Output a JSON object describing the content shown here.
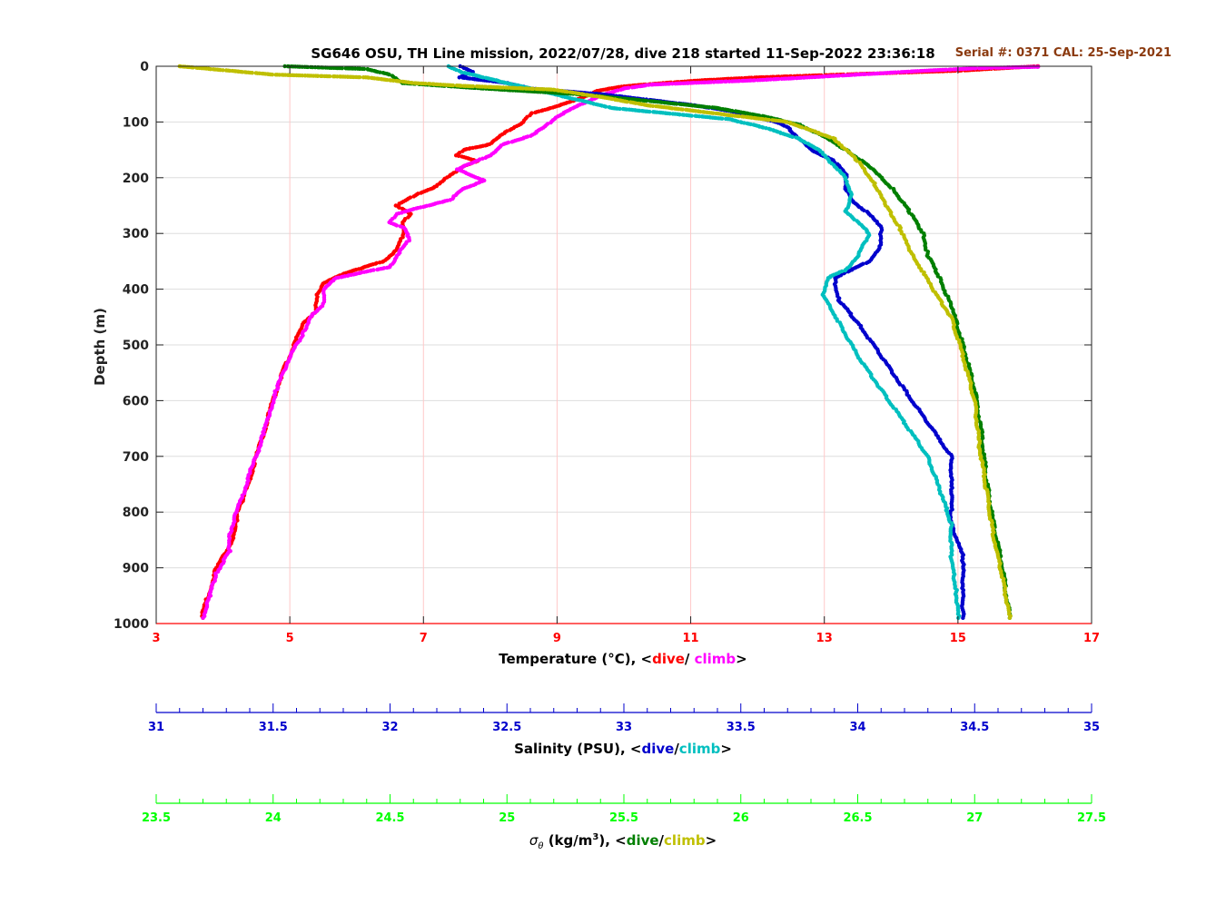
{
  "title": "SG646 OSU, TH Line mission, 2022/07/28, dive 218 started 11-Sep-2022 23:36:18",
  "serial_label": "Serial #: 0371  CAL: 25-Sep-2021",
  "colors": {
    "temp_dive": "#ff0000",
    "temp_climb": "#ff00ff",
    "sal_dive": "#0000cc",
    "sal_climb": "#00bfbf",
    "dens_dive": "#007f00",
    "dens_climb": "#bfbf00",
    "temp_axis": "#ff0000",
    "sal_axis": "#0000cc",
    "dens_axis": "#00ff00",
    "serial": "#8b3a0f"
  },
  "axis_labels": {
    "depth": "Depth (m)",
    "temp_prefix": "Temperature (°C), <",
    "temp_dive": "dive",
    "temp_sep": "/ ",
    "temp_climb": "climb",
    "temp_suffix": ">",
    "sal_prefix": "Salinity (PSU), <",
    "sal_dive": "dive",
    "sal_sep": "/",
    "sal_climb": "climb",
    "sal_suffix": ">",
    "dens_sigma": "σ",
    "dens_theta": "θ",
    "dens_unit": " (kg/m",
    "dens_exp": "3",
    "dens_prefix": "), <",
    "dens_dive": "dive",
    "dens_sep": "/",
    "dens_climb": "climb",
    "dens_suffix": ">"
  },
  "chart_data": {
    "type": "scatter",
    "y_axis": {
      "label": "Depth (m)",
      "range": [
        0,
        1000
      ],
      "reversed": true,
      "ticks": [
        "0",
        "100",
        "200",
        "300",
        "400",
        "500",
        "600",
        "700",
        "800",
        "900",
        "1000"
      ]
    },
    "x_axes": [
      {
        "name": "temperature",
        "range": [
          3,
          17
        ],
        "ticks": [
          "3",
          "5",
          "7",
          "9",
          "11",
          "13",
          "15",
          "17"
        ]
      },
      {
        "name": "salinity",
        "range": [
          31,
          35
        ],
        "ticks": [
          "31",
          "31.5",
          "32",
          "32.5",
          "33",
          "33.5",
          "34",
          "34.5",
          "35"
        ]
      },
      {
        "name": "sigma_theta",
        "range": [
          23.5,
          27.5
        ],
        "ticks": [
          "23.5",
          "24",
          "24.5",
          "25",
          "25.5",
          "26",
          "26.5",
          "27",
          "27.5"
        ]
      }
    ],
    "series": [
      {
        "key": "temp_dive",
        "axis": "temperature",
        "color": "#ff0000",
        "points": [
          [
            16.2,
            0
          ],
          [
            15.0,
            8
          ],
          [
            14.0,
            12
          ],
          [
            13.0,
            16
          ],
          [
            12.0,
            20
          ],
          [
            11.2,
            25
          ],
          [
            10.6,
            30
          ],
          [
            10.0,
            36
          ],
          [
            9.6,
            44
          ],
          [
            9.3,
            60
          ],
          [
            8.9,
            75
          ],
          [
            8.6,
            85
          ],
          [
            8.5,
            100
          ],
          [
            8.2,
            120
          ],
          [
            8.0,
            140
          ],
          [
            7.6,
            150
          ],
          [
            7.5,
            160
          ],
          [
            7.8,
            170
          ],
          [
            7.6,
            180
          ],
          [
            7.4,
            195
          ],
          [
            7.2,
            215
          ],
          [
            6.9,
            230
          ],
          [
            6.6,
            250
          ],
          [
            6.8,
            265
          ],
          [
            6.7,
            280
          ],
          [
            6.7,
            300
          ],
          [
            6.6,
            330
          ],
          [
            6.4,
            350
          ],
          [
            6.0,
            365
          ],
          [
            5.8,
            372
          ],
          [
            5.5,
            390
          ],
          [
            5.4,
            410
          ],
          [
            5.4,
            440
          ],
          [
            5.2,
            460
          ],
          [
            5.1,
            490
          ],
          [
            5.0,
            520
          ],
          [
            4.9,
            545
          ],
          [
            4.8,
            580
          ],
          [
            4.7,
            620
          ],
          [
            4.6,
            660
          ],
          [
            4.5,
            700
          ],
          [
            4.4,
            740
          ],
          [
            4.3,
            780
          ],
          [
            4.2,
            800
          ],
          [
            4.2,
            830
          ],
          [
            4.1,
            860
          ],
          [
            3.9,
            900
          ],
          [
            3.8,
            940
          ],
          [
            3.7,
            980
          ],
          [
            3.7,
            990
          ]
        ]
      },
      {
        "key": "temp_climb",
        "axis": "temperature",
        "color": "#ff00ff",
        "points": [
          [
            3.7,
            990
          ],
          [
            3.8,
            950
          ],
          [
            3.9,
            910
          ],
          [
            4.1,
            870
          ],
          [
            4.1,
            840
          ],
          [
            4.2,
            800
          ],
          [
            4.3,
            770
          ],
          [
            4.4,
            730
          ],
          [
            4.5,
            700
          ],
          [
            4.6,
            660
          ],
          [
            4.7,
            620
          ],
          [
            4.8,
            580
          ],
          [
            4.9,
            550
          ],
          [
            5.0,
            520
          ],
          [
            5.2,
            480
          ],
          [
            5.3,
            450
          ],
          [
            5.5,
            430
          ],
          [
            5.5,
            400
          ],
          [
            5.7,
            380
          ],
          [
            6.0,
            372
          ],
          [
            6.5,
            360
          ],
          [
            6.6,
            340
          ],
          [
            6.8,
            310
          ],
          [
            6.7,
            290
          ],
          [
            6.5,
            280
          ],
          [
            6.6,
            265
          ],
          [
            6.9,
            255
          ],
          [
            7.4,
            240
          ],
          [
            7.6,
            220
          ],
          [
            7.9,
            205
          ],
          [
            7.7,
            195
          ],
          [
            7.5,
            185
          ],
          [
            7.8,
            170
          ],
          [
            8.0,
            160
          ],
          [
            8.2,
            140
          ],
          [
            8.6,
            125
          ],
          [
            8.8,
            110
          ],
          [
            9.0,
            90
          ],
          [
            9.3,
            72
          ],
          [
            9.6,
            55
          ],
          [
            10.0,
            40
          ],
          [
            10.4,
            33
          ],
          [
            11.0,
            30
          ],
          [
            12.0,
            25
          ],
          [
            13.5,
            15
          ],
          [
            14.5,
            8
          ],
          [
            15.4,
            3
          ],
          [
            16.2,
            1
          ]
        ]
      },
      {
        "key": "sal_dive",
        "axis": "salinity",
        "color": "#0000cc",
        "points": [
          [
            32.3,
            0
          ],
          [
            32.35,
            10
          ],
          [
            32.3,
            20
          ],
          [
            32.5,
            30
          ],
          [
            32.6,
            40
          ],
          [
            32.9,
            50
          ],
          [
            33.1,
            60
          ],
          [
            33.3,
            70
          ],
          [
            33.45,
            80
          ],
          [
            33.55,
            90
          ],
          [
            33.65,
            100
          ],
          [
            33.7,
            110
          ],
          [
            33.75,
            130
          ],
          [
            33.8,
            150
          ],
          [
            33.9,
            170
          ],
          [
            33.95,
            195
          ],
          [
            33.95,
            220
          ],
          [
            33.97,
            240
          ],
          [
            34.05,
            265
          ],
          [
            34.1,
            290
          ],
          [
            34.1,
            320
          ],
          [
            34.05,
            350
          ],
          [
            33.95,
            370
          ],
          [
            33.9,
            380
          ],
          [
            33.92,
            420
          ],
          [
            34.0,
            460
          ],
          [
            34.1,
            520
          ],
          [
            34.2,
            580
          ],
          [
            34.3,
            640
          ],
          [
            34.4,
            700
          ],
          [
            34.4,
            760
          ],
          [
            34.4,
            820
          ],
          [
            34.45,
            880
          ],
          [
            34.45,
            940
          ],
          [
            34.45,
            990
          ]
        ]
      },
      {
        "key": "sal_climb",
        "axis": "salinity",
        "color": "#00bfbf",
        "points": [
          [
            34.43,
            990
          ],
          [
            34.42,
            940
          ],
          [
            34.4,
            880
          ],
          [
            34.4,
            820
          ],
          [
            34.35,
            760
          ],
          [
            34.3,
            700
          ],
          [
            34.2,
            640
          ],
          [
            34.1,
            580
          ],
          [
            34.0,
            520
          ],
          [
            33.92,
            460
          ],
          [
            33.85,
            410
          ],
          [
            33.87,
            380
          ],
          [
            33.95,
            365
          ],
          [
            34.0,
            340
          ],
          [
            34.05,
            300
          ],
          [
            34.0,
            280
          ],
          [
            33.95,
            260
          ],
          [
            33.97,
            230
          ],
          [
            33.95,
            200
          ],
          [
            33.9,
            180
          ],
          [
            33.85,
            155
          ],
          [
            33.75,
            130
          ],
          [
            33.6,
            110
          ],
          [
            33.45,
            95
          ],
          [
            33.2,
            85
          ],
          [
            32.95,
            75
          ],
          [
            32.75,
            55
          ],
          [
            32.55,
            35
          ],
          [
            32.4,
            20
          ],
          [
            32.3,
            10
          ],
          [
            32.25,
            0
          ]
        ]
      },
      {
        "key": "dens_dive",
        "axis": "sigma_theta",
        "color": "#007f00",
        "points": [
          [
            24.05,
            0
          ],
          [
            24.4,
            5
          ],
          [
            24.5,
            15
          ],
          [
            24.55,
            30
          ],
          [
            24.9,
            40
          ],
          [
            25.3,
            50
          ],
          [
            25.6,
            62
          ],
          [
            25.9,
            75
          ],
          [
            26.1,
            90
          ],
          [
            26.25,
            105
          ],
          [
            26.35,
            125
          ],
          [
            26.45,
            150
          ],
          [
            26.55,
            180
          ],
          [
            26.65,
            220
          ],
          [
            26.72,
            260
          ],
          [
            26.78,
            300
          ],
          [
            26.8,
            340
          ],
          [
            26.85,
            380
          ],
          [
            26.9,
            430
          ],
          [
            26.95,
            500
          ],
          [
            27.0,
            580
          ],
          [
            27.03,
            660
          ],
          [
            27.05,
            740
          ],
          [
            27.08,
            820
          ],
          [
            27.12,
            900
          ],
          [
            27.15,
            990
          ]
        ]
      },
      {
        "key": "dens_climb",
        "axis": "sigma_theta",
        "color": "#bfbf00",
        "points": [
          [
            27.15,
            990
          ],
          [
            27.12,
            920
          ],
          [
            27.08,
            840
          ],
          [
            27.05,
            760
          ],
          [
            27.02,
            680
          ],
          [
            27.0,
            600
          ],
          [
            26.95,
            520
          ],
          [
            26.9,
            450
          ],
          [
            26.82,
            400
          ],
          [
            26.78,
            370
          ],
          [
            26.72,
            330
          ],
          [
            26.68,
            290
          ],
          [
            26.62,
            250
          ],
          [
            26.57,
            210
          ],
          [
            26.5,
            170
          ],
          [
            26.4,
            130
          ],
          [
            26.2,
            100
          ],
          [
            25.9,
            85
          ],
          [
            25.6,
            70
          ],
          [
            25.4,
            55
          ],
          [
            25.2,
            42
          ],
          [
            24.8,
            35
          ],
          [
            24.6,
            30
          ],
          [
            24.4,
            20
          ],
          [
            24.0,
            15
          ],
          [
            23.6,
            0
          ]
        ]
      }
    ],
    "title": "SG646 OSU, TH Line mission, 2022/07/28, dive 218 started 11-Sep-2022 23:36:18",
    "grid": true
  }
}
